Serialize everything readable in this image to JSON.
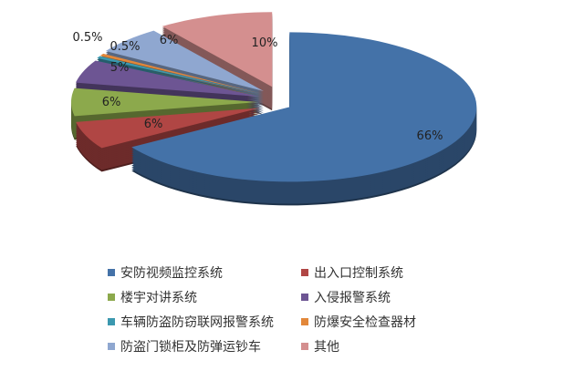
{
  "chart_data": {
    "type": "pie",
    "style": "3d-exploded",
    "categories": [
      "安防视频监控系统",
      "出入口控制系统",
      "楼宇对讲系统",
      "入侵报警系统",
      "车辆防盗防窃联网报警系统",
      "防爆安全检查器材",
      "防盗门锁柜及防弹运钞车",
      "其他"
    ],
    "values": [
      66,
      6,
      6,
      5,
      0.5,
      0.5,
      6,
      10
    ],
    "data_labels": [
      "66%",
      "6%",
      "6%",
      "5%",
      "0.5%",
      "0.5%",
      "6%",
      "10%"
    ],
    "colors": [
      "#4472A8",
      "#B04644",
      "#8CA94C",
      "#6D5593",
      "#3B98AF",
      "#E2873A",
      "#8FA7D0",
      "#D48F8F"
    ],
    "legend_placement": "bottom"
  }
}
